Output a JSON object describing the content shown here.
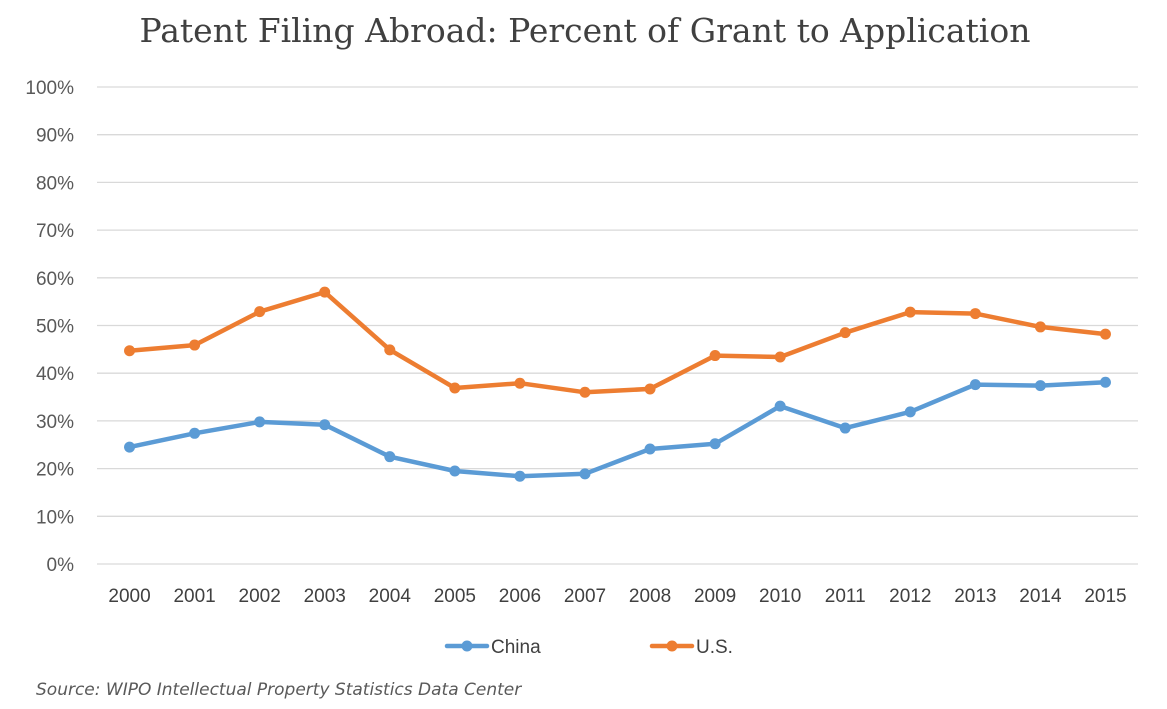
{
  "chart_data": {
    "type": "line",
    "title": "Patent Filing Abroad: Percent of Grant to Application",
    "xlabel": "",
    "ylabel": "",
    "categories": [
      "2000",
      "2001",
      "2002",
      "2003",
      "2004",
      "2005",
      "2006",
      "2007",
      "2008",
      "2009",
      "2010",
      "2011",
      "2012",
      "2013",
      "2014",
      "2015"
    ],
    "series": [
      {
        "name": "China",
        "color": "#5b9bd5",
        "values": [
          24.5,
          27.4,
          29.8,
          29.2,
          22.5,
          19.5,
          18.4,
          18.9,
          24.1,
          25.2,
          33.1,
          28.5,
          31.9,
          37.6,
          37.4,
          38.1
        ]
      },
      {
        "name": "U.S.",
        "color": "#ed7d31",
        "values": [
          44.7,
          45.9,
          52.9,
          57.0,
          44.9,
          36.9,
          37.9,
          36.0,
          36.7,
          43.7,
          43.4,
          48.5,
          52.8,
          52.5,
          49.7,
          48.2
        ]
      }
    ],
    "ylim": [
      0,
      100
    ],
    "yticks": [
      "0%",
      "10%",
      "20%",
      "30%",
      "40%",
      "50%",
      "60%",
      "70%",
      "80%",
      "90%",
      "100%"
    ],
    "grid": true,
    "gridline_color": "#d9d9d9",
    "legend_position": "bottom"
  },
  "source_note": "Source: WIPO Intellectual Property Statistics Data Center"
}
